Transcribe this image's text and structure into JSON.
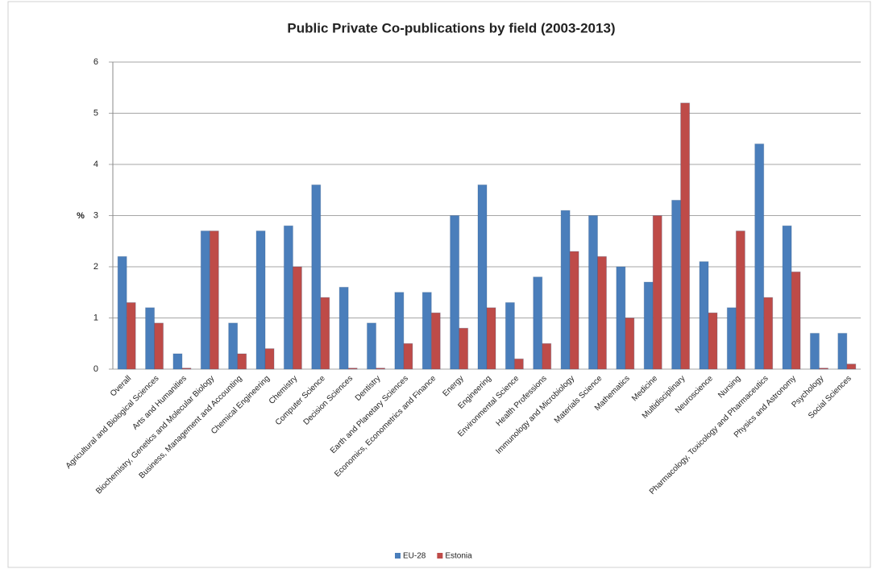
{
  "chart_data": {
    "type": "bar",
    "title": "Public Private Co-publications by field (2003-2013)",
    "y_label": "%",
    "categories": [
      "Overall",
      "Agricultural and Biological Sciences",
      "Arts and Humanities",
      "Biochemistry, Genetics and Molecular Biology",
      "Business, Management and Accounting",
      "Chemical Engineering",
      "Chemistry",
      "Computer Science",
      "Decision Sciences",
      "Dentistry",
      "Earth and Planetary Sciences",
      "Economics, Econometrics and Finance",
      "Energy",
      "Engineering",
      "Environmental Science",
      "Health Professions",
      "Immunology and Microbiology",
      "Materials Science",
      "Mathematics",
      "Medicine",
      "Multidisciplinary",
      "Neuroscience",
      "Nursing",
      "Pharmacology, Toxicology and Pharmaceutics",
      "Physics and Astronomy",
      "Psychology",
      "Social Sciences"
    ],
    "series": [
      {
        "name": "EU-28",
        "color": "#4a7ebb",
        "values": [
          2.2,
          1.2,
          0.3,
          2.7,
          0.9,
          2.7,
          2.8,
          3.6,
          1.6,
          0.9,
          1.5,
          1.5,
          3.0,
          3.6,
          1.3,
          1.8,
          3.1,
          3.0,
          2.0,
          1.7,
          3.3,
          2.1,
          1.2,
          4.4,
          2.8,
          0.7,
          0.7
        ]
      },
      {
        "name": "Estonia",
        "color": "#be4b48",
        "values": [
          1.3,
          0.9,
          0.02,
          2.7,
          0.3,
          0.4,
          2.0,
          1.4,
          0.02,
          0.02,
          0.5,
          1.1,
          0.8,
          1.2,
          0.2,
          0.5,
          2.3,
          2.2,
          1.0,
          3.0,
          5.2,
          1.1,
          2.7,
          1.4,
          1.9,
          0.02,
          0.1
        ]
      }
    ],
    "ylim": [
      0,
      6
    ],
    "yticks": [
      0,
      1,
      2,
      3,
      4,
      5,
      6
    ],
    "grid": true,
    "legend": "bottom"
  }
}
